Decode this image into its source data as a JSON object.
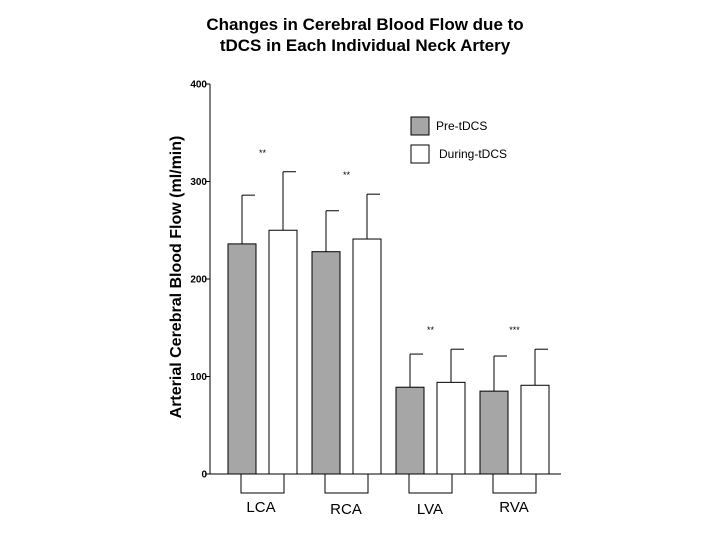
{
  "chart_data": {
    "type": "bar",
    "title": [
      "Changes in Cerebral Blood Flow due to",
      "tDCS in Each Individual Neck Artery"
    ],
    "xlabel": "",
    "ylabel": "Arterial Cerebral Blood Flow (ml/min)",
    "ylim": [
      0,
      400
    ],
    "yticks": [
      0,
      100,
      200,
      300,
      400
    ],
    "categories": [
      "LCA",
      "RCA",
      "LVA",
      "RVA"
    ],
    "series": [
      {
        "name": "Pre-tDCS",
        "color": "#a6a6a6",
        "values": [
          236,
          228,
          89,
          85
        ],
        "errors": [
          50,
          42,
          34,
          36
        ]
      },
      {
        "name": "During-tDCS",
        "color": "#ffffff",
        "values": [
          250,
          241,
          94,
          91
        ],
        "errors": [
          60,
          46,
          34,
          37
        ]
      }
    ],
    "significance": [
      "**",
      "**",
      "**",
      "***"
    ],
    "legend_position": "top-right"
  }
}
